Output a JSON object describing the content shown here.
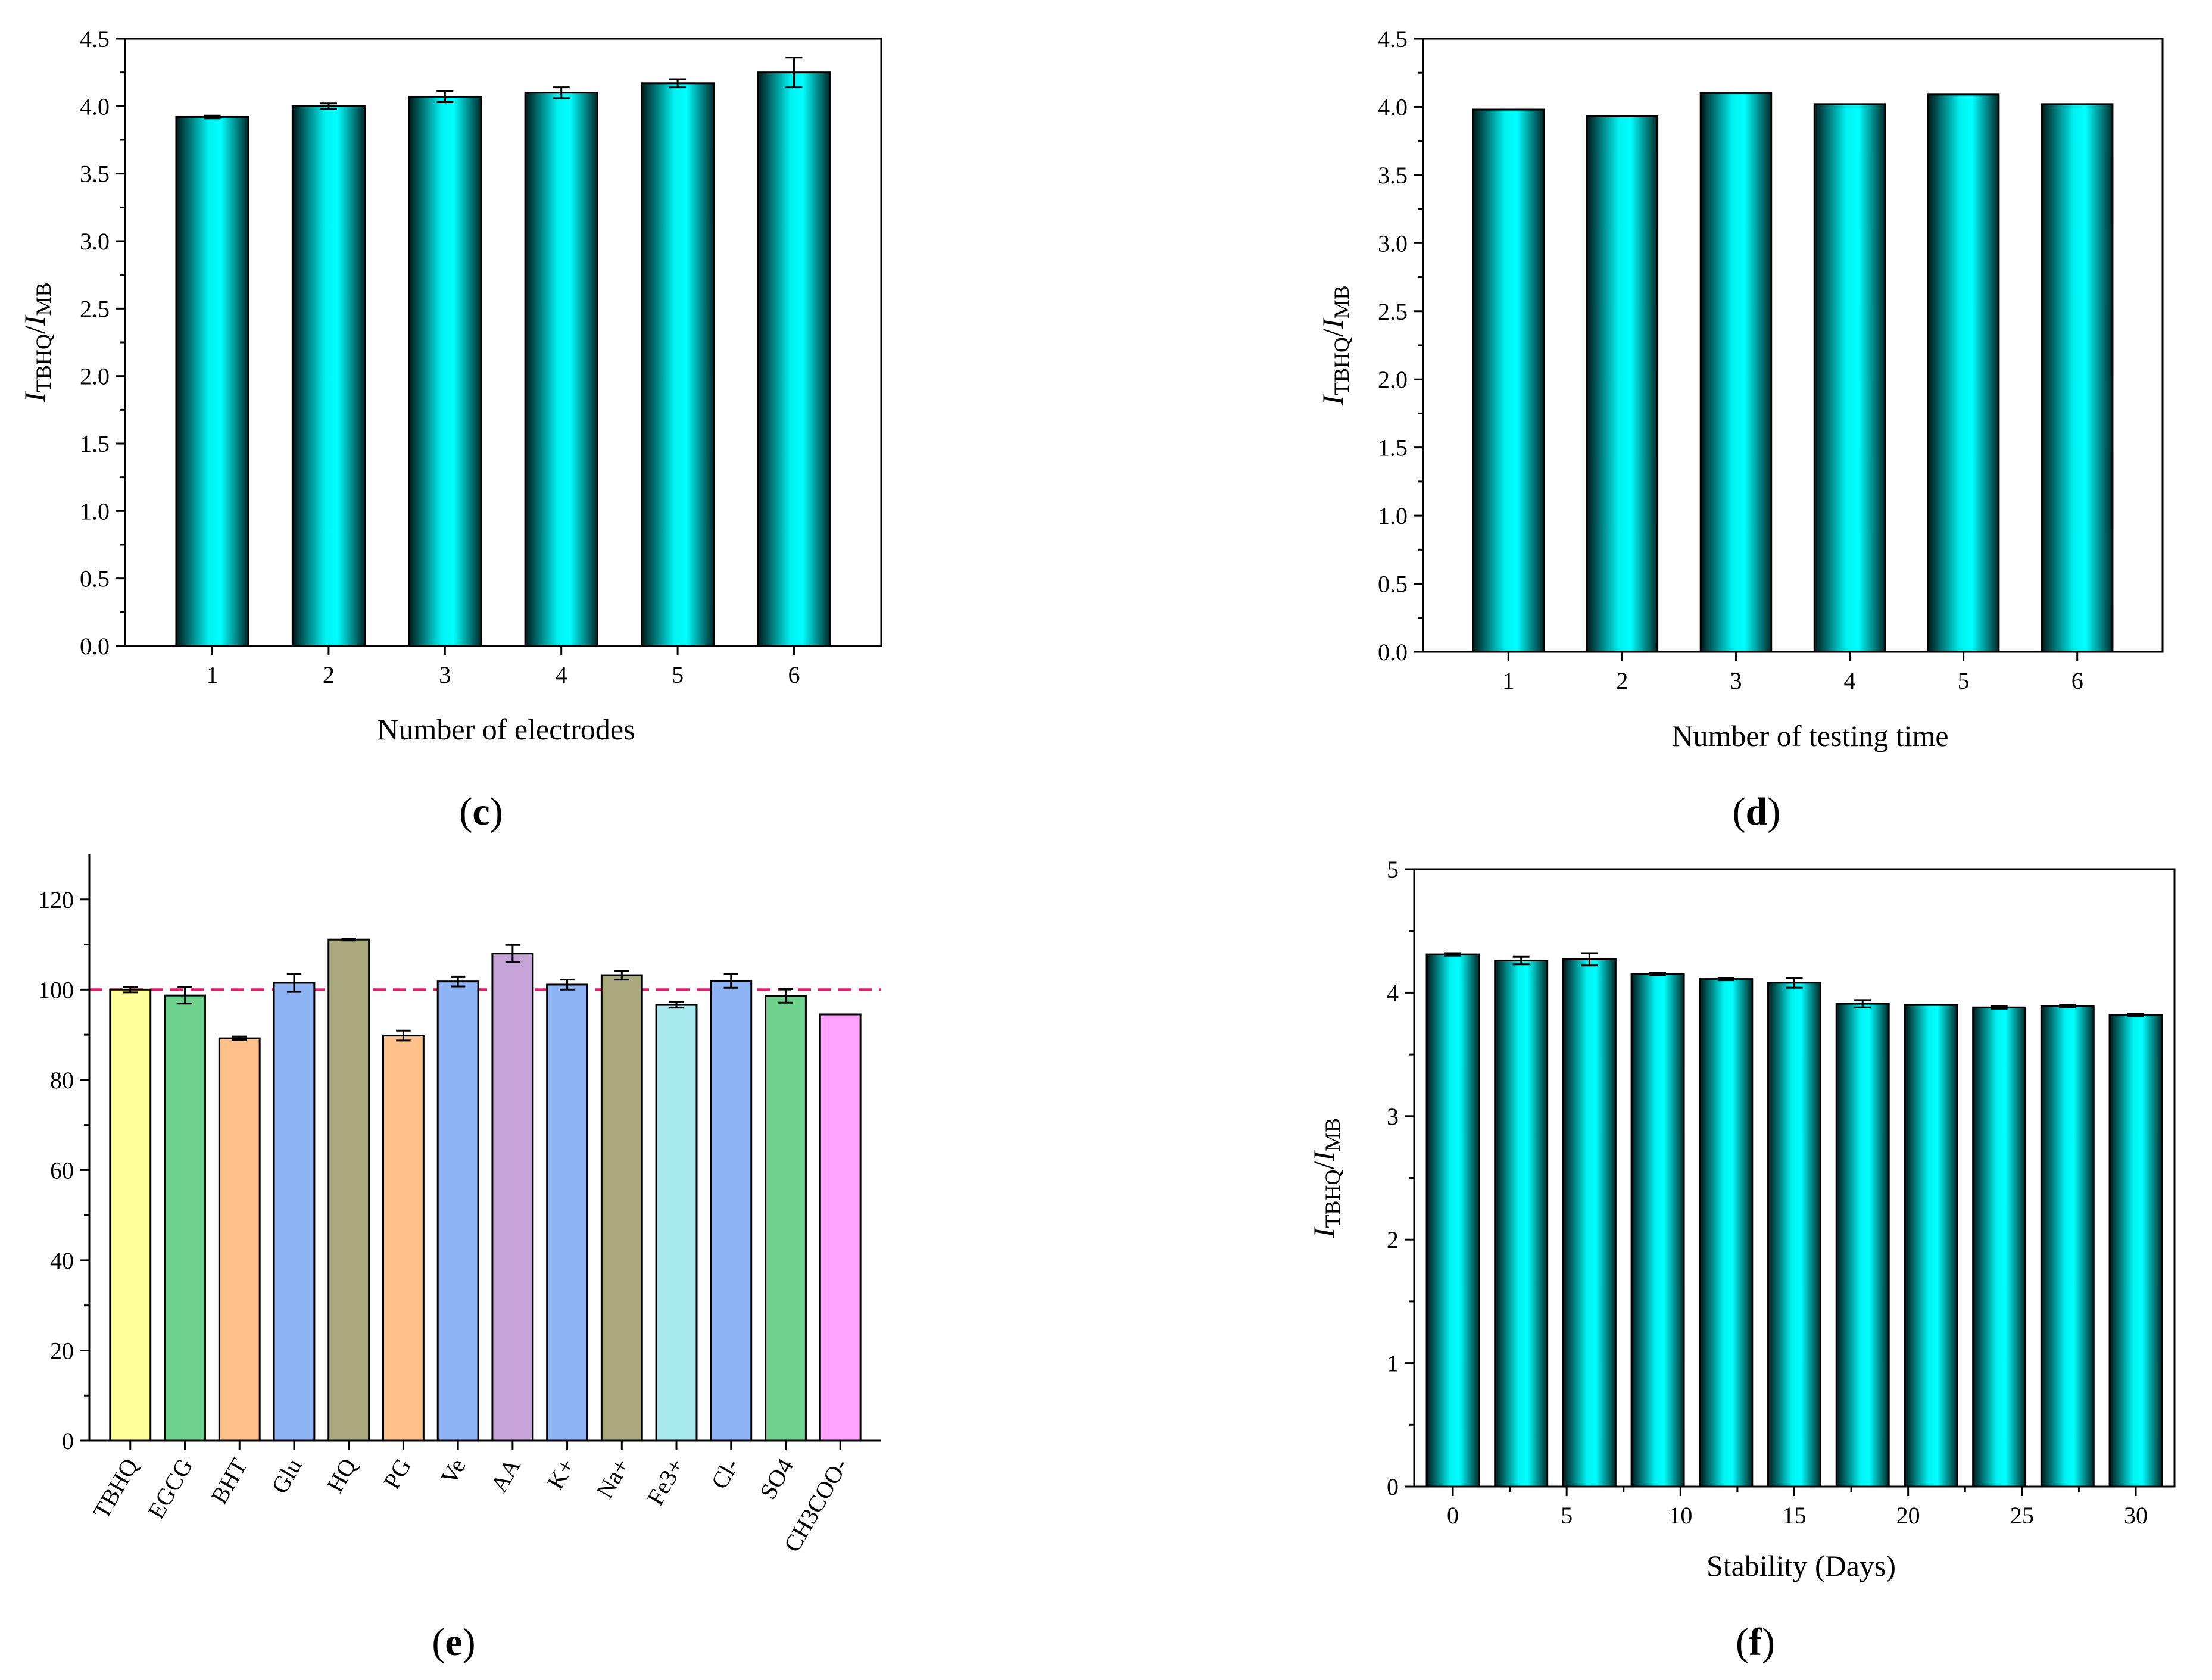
{
  "colors": {
    "cyan": "#00f5f5",
    "dark": "#003a3a",
    "reference_line": "#e8186e"
  },
  "chart_data": [
    {
      "id": "c",
      "panel_label": "c",
      "type": "bar",
      "ylabel": "I_TBHQ/I_MB",
      "xlabel": "Number of electrodes",
      "ylim": [
        0,
        4.5
      ],
      "yticks": [
        "0.0",
        "0.5",
        "1.0",
        "1.5",
        "2.0",
        "2.5",
        "3.0",
        "3.5",
        "4.0",
        "4.5"
      ],
      "categories": [
        "1",
        "2",
        "3",
        "4",
        "5",
        "6"
      ],
      "values": [
        3.92,
        4.0,
        4.07,
        4.1,
        4.17,
        4.25
      ],
      "errors": [
        0.01,
        0.02,
        0.04,
        0.04,
        0.03,
        0.11
      ]
    },
    {
      "id": "d",
      "panel_label": "d",
      "type": "bar",
      "ylabel": "I_TBHQ/I_MB",
      "xlabel": "Number of testing time",
      "ylim": [
        0,
        4.5
      ],
      "yticks": [
        "0.0",
        "0.5",
        "1.0",
        "1.5",
        "2.0",
        "2.5",
        "3.0",
        "3.5",
        "4.0",
        "4.5"
      ],
      "categories": [
        "1",
        "2",
        "3",
        "4",
        "5",
        "6"
      ],
      "values": [
        3.98,
        3.93,
        4.1,
        4.02,
        4.09,
        4.02
      ],
      "errors": [
        0,
        0,
        0,
        0,
        0,
        0
      ]
    },
    {
      "id": "e",
      "panel_label": "e",
      "type": "bar",
      "ylabel": "",
      "xlabel": "",
      "ylim": [
        0,
        130
      ],
      "yticks": [
        "0",
        "20",
        "40",
        "60",
        "80",
        "100",
        "120"
      ],
      "reference_line": 100,
      "categories": [
        "TBHQ",
        "EGCG",
        "BHT",
        "Glu",
        "HQ",
        "PG",
        "Ve",
        "AA",
        "K+",
        "Na+",
        "Fe3+",
        "Cl-",
        "SO4",
        "CH3COO-"
      ],
      "values": [
        100,
        98.7,
        89.2,
        101.5,
        111.1,
        89.8,
        101.8,
        108.0,
        101.1,
        103.2,
        96.6,
        101.9,
        98.6,
        94.5
      ],
      "errors": [
        0.6,
        1.8,
        0.4,
        2.0,
        0.2,
        1.1,
        1.1,
        1.9,
        1.1,
        1.0,
        0.6,
        1.5,
        1.5,
        0
      ],
      "bar_colors": [
        "#ffff99",
        "#6ed28e",
        "#ffc08a",
        "#8fb4f5",
        "#aaaa7e",
        "#ffc08a",
        "#8fb4f5",
        "#c6a4d8",
        "#8fb4f5",
        "#aaaa7e",
        "#a6e8ee",
        "#8fb4f5",
        "#6ed28e",
        "#ffa3ff"
      ]
    },
    {
      "id": "f",
      "panel_label": "f",
      "type": "bar",
      "ylabel": "I_TBHQ/I_MB",
      "xlabel": "Stability (Days)",
      "ylim": [
        0,
        5
      ],
      "xlim": [
        -1.7,
        31.7
      ],
      "yticks": [
        "0",
        "1",
        "2",
        "3",
        "4",
        "5"
      ],
      "xticks": [
        0,
        5,
        10,
        15,
        20,
        25,
        30
      ],
      "x": [
        0,
        3,
        6,
        9,
        12,
        15,
        18,
        21,
        24,
        27,
        30
      ],
      "values": [
        4.31,
        4.26,
        4.27,
        4.15,
        4.11,
        4.08,
        3.91,
        3.9,
        3.88,
        3.89,
        3.82
      ],
      "errors": [
        0.01,
        0.03,
        0.05,
        0.01,
        0.01,
        0.04,
        0.03,
        0.0,
        0.01,
        0.01,
        0.01
      ]
    }
  ]
}
